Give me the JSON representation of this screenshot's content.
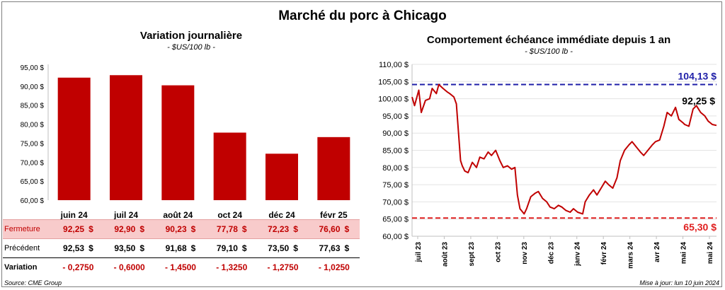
{
  "title": "Marché du porc à Chicago",
  "left_chart": {
    "title": "Variation journalière",
    "subtitle": "- $US/100 lb -"
  },
  "right_chart": {
    "title": "Comportement échéance immédiate depuis 1 an",
    "subtitle": "- $US/100 lb -",
    "high_label": "104,13 $",
    "low_label": "65,30 $",
    "last_label": "92,25 $"
  },
  "table": {
    "rows": [
      {
        "label": "Fermeture",
        "values": [
          "92,25",
          "92,90",
          "90,23",
          "77,78",
          "72,23",
          "76,60"
        ],
        "currency": "$"
      },
      {
        "label": "Précédent",
        "values": [
          "92,53",
          "93,50",
          "91,68",
          "79,10",
          "73,50",
          "77,63"
        ],
        "currency": "$"
      },
      {
        "label": "Variation",
        "values": [
          "- 0,2750",
          "- 0,6000",
          "- 1,4500",
          "- 1,3250",
          "- 1,2750",
          "- 1,0250"
        ],
        "currency": ""
      }
    ]
  },
  "footer": {
    "source": "Source: CME Group",
    "updated": "Mise à jour: lun 10 juin 2024"
  },
  "colors": {
    "bar": "#c00000",
    "line": "#c00000",
    "high_line": "#1f1fa8",
    "low_line": "#e02020"
  },
  "chart_data": [
    {
      "type": "bar",
      "categories": [
        "juin 24",
        "juil 24",
        "août 24",
        "oct 24",
        "déc 24",
        "févr 25"
      ],
      "values": [
        92.25,
        92.9,
        90.23,
        77.78,
        72.23,
        76.6
      ],
      "ylim": [
        60,
        95
      ],
      "yticks": [
        "60,00 $",
        "65,00 $",
        "70,00 $",
        "75,00 $",
        "80,00 $",
        "85,00 $",
        "90,00 $",
        "95,00 $"
      ],
      "grid": false
    },
    {
      "type": "line",
      "ylim": [
        60,
        110
      ],
      "yticks": [
        "60,00 $",
        "65,00 $",
        "70,00 $",
        "75,00 $",
        "80,00 $",
        "85,00 $",
        "90,00 $",
        "95,00 $",
        "100,00 $",
        "105,00 $",
        "110,00 $"
      ],
      "xticks": [
        "juil 23",
        "août 23",
        "sept 23",
        "oct 23",
        "nov 23",
        "déc 23",
        "janv 24",
        "févr 24",
        "mars 24",
        "avr 24",
        "mai 24",
        "mai 24"
      ],
      "x": [
        "2023-06-12",
        "2023-06-15",
        "2023-06-20",
        "2023-06-23",
        "2023-06-28",
        "2023-07-03",
        "2023-07-06",
        "2023-07-11",
        "2023-07-14",
        "2023-07-19",
        "2023-07-24",
        "2023-07-27",
        "2023-08-01",
        "2023-08-04",
        "2023-08-09",
        "2023-08-11",
        "2023-08-14",
        "2023-08-18",
        "2023-08-23",
        "2023-08-28",
        "2023-09-01",
        "2023-09-06",
        "2023-09-11",
        "2023-09-15",
        "2023-09-20",
        "2023-09-25",
        "2023-09-29",
        "2023-10-04",
        "2023-10-09",
        "2023-10-13",
        "2023-10-16",
        "2023-10-19",
        "2023-10-24",
        "2023-10-27",
        "2023-11-01",
        "2023-11-06",
        "2023-11-10",
        "2023-11-15",
        "2023-11-20",
        "2023-11-24",
        "2023-11-29",
        "2023-12-04",
        "2023-12-08",
        "2023-12-13",
        "2023-12-18",
        "2023-12-22",
        "2023-12-27",
        "2024-01-02",
        "2024-01-05",
        "2024-01-10",
        "2024-01-15",
        "2024-01-19",
        "2024-01-24",
        "2024-01-29",
        "2024-02-02",
        "2024-02-07",
        "2024-02-12",
        "2024-02-16",
        "2024-02-21",
        "2024-02-26",
        "2024-03-01",
        "2024-03-06",
        "2024-03-11",
        "2024-03-15",
        "2024-03-20",
        "2024-03-25",
        "2024-03-29",
        "2024-04-03",
        "2024-04-08",
        "2024-04-12",
        "2024-04-17",
        "2024-04-22",
        "2024-04-26",
        "2024-05-01",
        "2024-05-03",
        "2024-05-08",
        "2024-05-13",
        "2024-05-17",
        "2024-05-22",
        "2024-05-27",
        "2024-05-31",
        "2024-06-05",
        "2024-06-10"
      ],
      "series": [
        {
          "values": [
            100.5,
            98.0,
            102.5,
            96.0,
            99.5,
            100.0,
            103.0,
            101.5,
            104.13,
            103.0,
            102.0,
            101.5,
            100.5,
            98.5,
            82.0,
            80.5,
            79.0,
            78.5,
            81.5,
            80.0,
            83.0,
            82.5,
            84.5,
            83.5,
            85.0,
            82.0,
            80.0,
            80.5,
            79.5,
            80.0,
            72.0,
            68.0,
            66.5,
            68.0,
            71.5,
            72.5,
            73.0,
            71.0,
            70.0,
            68.5,
            68.0,
            69.0,
            68.5,
            67.5,
            67.0,
            68.0,
            67.0,
            66.5,
            70.0,
            72.0,
            73.5,
            72.0,
            74.0,
            76.0,
            75.0,
            74.0,
            77.0,
            82.0,
            85.0,
            86.5,
            87.5,
            86.0,
            84.5,
            83.5,
            85.0,
            86.5,
            87.5,
            88.0,
            92.0,
            96.0,
            95.0,
            97.5,
            94.0,
            93.0,
            92.5,
            92.0,
            97.0,
            98.0,
            96.0,
            95.0,
            93.5,
            92.5,
            92.25
          ]
        }
      ],
      "reference_lines": [
        {
          "value": 104.13,
          "label": "104,13 $"
        },
        {
          "value": 65.3,
          "label": "65,30 $"
        }
      ],
      "grid": true
    }
  ]
}
